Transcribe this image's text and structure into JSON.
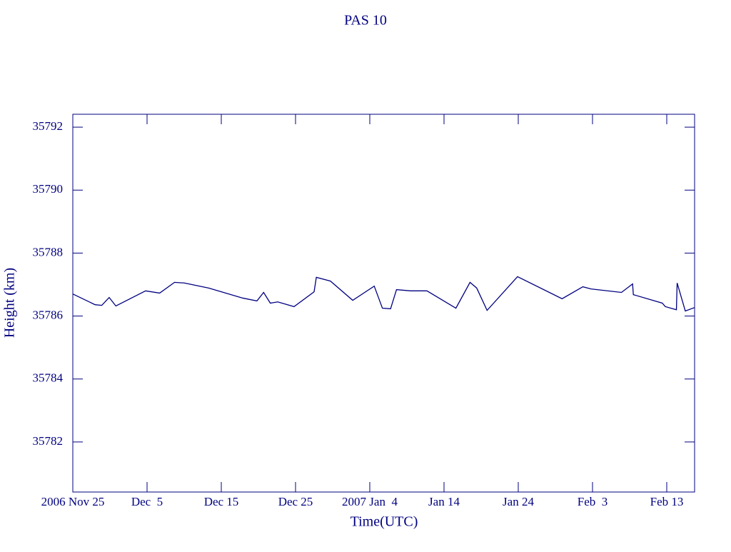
{
  "chart_data": {
    "type": "line",
    "title": "PAS 10",
    "x_label": "Time(UTC)",
    "y_label": "Height (km)",
    "color": "#000080",
    "x": [
      0,
      3.0,
      3.9,
      4.9,
      5.8,
      9.8,
      11.7,
      13.7,
      15.0,
      18.3,
      22.9,
      24.8,
      25.7,
      26.6,
      27.6,
      29.8,
      32.5,
      32.8,
      34.7,
      37.7,
      40.6,
      41.7,
      42.8,
      43.6,
      45.5,
      47.7,
      51.6,
      53.5,
      54.4,
      55.8,
      59.9,
      65.9,
      68.7,
      69.8,
      73.9,
      75.4,
      75.5,
      79.4,
      79.8,
      81.3,
      81.4,
      82.5,
      83.75
    ],
    "values": [
      35786.7,
      35786.36,
      35786.34,
      35786.59,
      35786.32,
      35786.8,
      35786.73,
      35787.07,
      35787.05,
      35786.89,
      35786.57,
      35786.48,
      35786.75,
      35786.41,
      35786.45,
      35786.3,
      35786.77,
      35787.23,
      35787.11,
      35786.5,
      35786.95,
      35786.25,
      35786.23,
      35786.84,
      35786.8,
      35786.8,
      35786.25,
      35787.07,
      35786.89,
      35786.18,
      35787.25,
      35786.55,
      35786.93,
      35786.86,
      35786.75,
      35787.02,
      35786.68,
      35786.41,
      35786.3,
      35786.2,
      35787.05,
      35786.16,
      35786.27
    ],
    "xlim": [
      0,
      83.75
    ],
    "xticks": [
      {
        "value": 0,
        "label": "2006 Nov 25"
      },
      {
        "value": 10,
        "label": "Dec  5"
      },
      {
        "value": 20,
        "label": "Dec 15"
      },
      {
        "value": 30,
        "label": "Dec 25"
      },
      {
        "value": 40,
        "label": "2007 Jan  4"
      },
      {
        "value": 50,
        "label": "Jan 14"
      },
      {
        "value": 60,
        "label": "Jan 24"
      },
      {
        "value": 70,
        "label": "Feb  3"
      },
      {
        "value": 80,
        "label": "Feb 13"
      }
    ],
    "ylim": [
      35780.41,
      35792.41
    ],
    "yticks": [
      35782,
      35784,
      35786,
      35788,
      35790,
      35792
    ],
    "grid": false
  }
}
